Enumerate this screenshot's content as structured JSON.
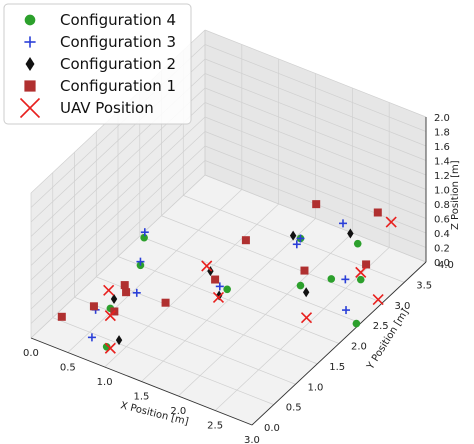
{
  "chart_data": {
    "type": "scatter",
    "title": "",
    "xlabel": "X Position [m]",
    "ylabel": "Y Position [m]",
    "zlabel": "Z Position [m]",
    "xlim": [
      0,
      3
    ],
    "ylim": [
      0,
      4
    ],
    "zlim": [
      0,
      2
    ],
    "x_ticks": [
      "0.0",
      "0.5",
      "1.0",
      "1.5",
      "2.0",
      "2.5",
      "3.0"
    ],
    "y_ticks": [
      "0.0",
      "0.5",
      "1.0",
      "1.5",
      "2.0",
      "2.5",
      "3.0",
      "3.5",
      "4.0"
    ],
    "z_ticks": [
      "0.0",
      "0.2",
      "0.4",
      "0.6",
      "0.8",
      "1.0",
      "1.2",
      "1.4",
      "1.6",
      "1.8",
      "2.0"
    ],
    "grid": true,
    "legend_position": "top-left",
    "series": [
      {
        "name": "Configuration 4",
        "marker": "circle",
        "color": "#2ca02c",
        "points": [
          [
            0.9,
            0.3,
            0.6
          ],
          [
            0.85,
            0.3,
            0.05
          ],
          [
            0.6,
            1.5,
            0.4
          ],
          [
            0.65,
            1.5,
            0.8
          ],
          [
            1.6,
            1.8,
            0.3
          ],
          [
            2.3,
            2.3,
            0.35
          ],
          [
            2.3,
            2.3,
            1.0
          ],
          [
            2.6,
            2.5,
            0.45
          ],
          [
            3.0,
            2.4,
            0.05
          ],
          [
            3.0,
            2.5,
            0.6
          ],
          [
            2.9,
            2.6,
            1.0
          ]
        ]
      },
      {
        "name": "Configuration 3",
        "marker": "plus",
        "color": "#2a3fd8",
        "points": [
          [
            0.65,
            0.3,
            0.1
          ],
          [
            0.7,
            0.3,
            0.5
          ],
          [
            0.55,
            1.5,
            0.0
          ],
          [
            0.6,
            1.5,
            0.45
          ],
          [
            0.6,
            1.6,
            0.8
          ],
          [
            1.5,
            1.8,
            0.3
          ],
          [
            2.25,
            2.3,
            0.9
          ],
          [
            2.3,
            2.3,
            1.0
          ],
          [
            2.85,
            2.4,
            0.6
          ],
          [
            2.7,
            2.6,
            1.2
          ],
          [
            2.8,
            2.5,
            0.1
          ]
        ]
      },
      {
        "name": "Configuration 2",
        "marker": "diamond",
        "color": "#111111",
        "points": [
          [
            0.95,
            0.3,
            0.75
          ],
          [
            0.9,
            0.5,
            0.05
          ],
          [
            1.55,
            1.7,
            0.25
          ],
          [
            1.55,
            1.5,
            0.7
          ],
          [
            2.2,
            2.3,
            1.0
          ],
          [
            2.2,
            2.6,
            0.05
          ],
          [
            2.8,
            2.6,
            1.1
          ]
        ]
      },
      {
        "name": "Configuration 1",
        "marker": "square",
        "color": "#b03030",
        "points": [
          [
            0.3,
            0.2,
            0.3
          ],
          [
            0.5,
            0.6,
            0.3
          ],
          [
            0.6,
            0.9,
            0.1
          ],
          [
            0.7,
            1.0,
            0.35
          ],
          [
            0.8,
            0.8,
            0.6
          ],
          [
            1.0,
            1.4,
            0.1
          ],
          [
            1.2,
            2.2,
            0.05
          ],
          [
            1.5,
            2.4,
            0.6
          ],
          [
            2.0,
            2.9,
            0.1
          ],
          [
            2.1,
            3.0,
            1.0
          ],
          [
            2.6,
            3.3,
            0.2
          ],
          [
            2.7,
            3.4,
            0.9
          ]
        ]
      },
      {
        "name": "UAV Position",
        "marker": "x",
        "color": "#e8201e",
        "points": [
          [
            0.9,
            0.3,
            0.5
          ],
          [
            0.9,
            0.3,
            0.05
          ],
          [
            0.7,
            0.6,
            0.6
          ],
          [
            1.6,
            1.6,
            0.3
          ],
          [
            1.5,
            1.5,
            0.75
          ],
          [
            2.5,
            2.1,
            0.1
          ],
          [
            3.0,
            2.5,
            0.7
          ],
          [
            3.0,
            2.9,
            0.1
          ],
          [
            3.0,
            3.2,
            1.0
          ]
        ]
      }
    ]
  }
}
